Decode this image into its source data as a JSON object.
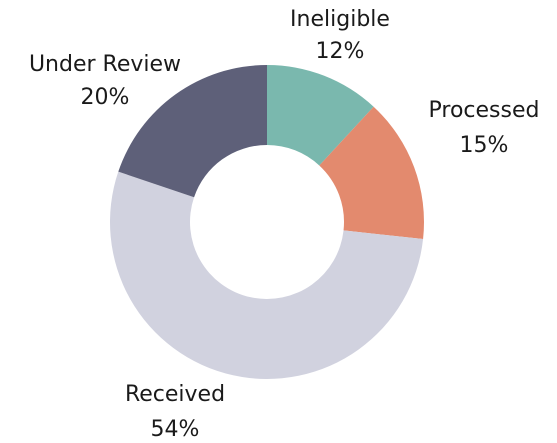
{
  "chart_data": {
    "type": "donut",
    "categories": [
      "Ineligible",
      "Processed",
      "Received",
      "Under Review"
    ],
    "values": [
      12,
      15,
      54,
      20
    ],
    "value_labels": [
      "12%",
      "15%",
      "54%",
      "20%"
    ],
    "colors": [
      "#7ab8ae",
      "#e38a6e",
      "#d1d2df",
      "#5e6079"
    ]
  }
}
